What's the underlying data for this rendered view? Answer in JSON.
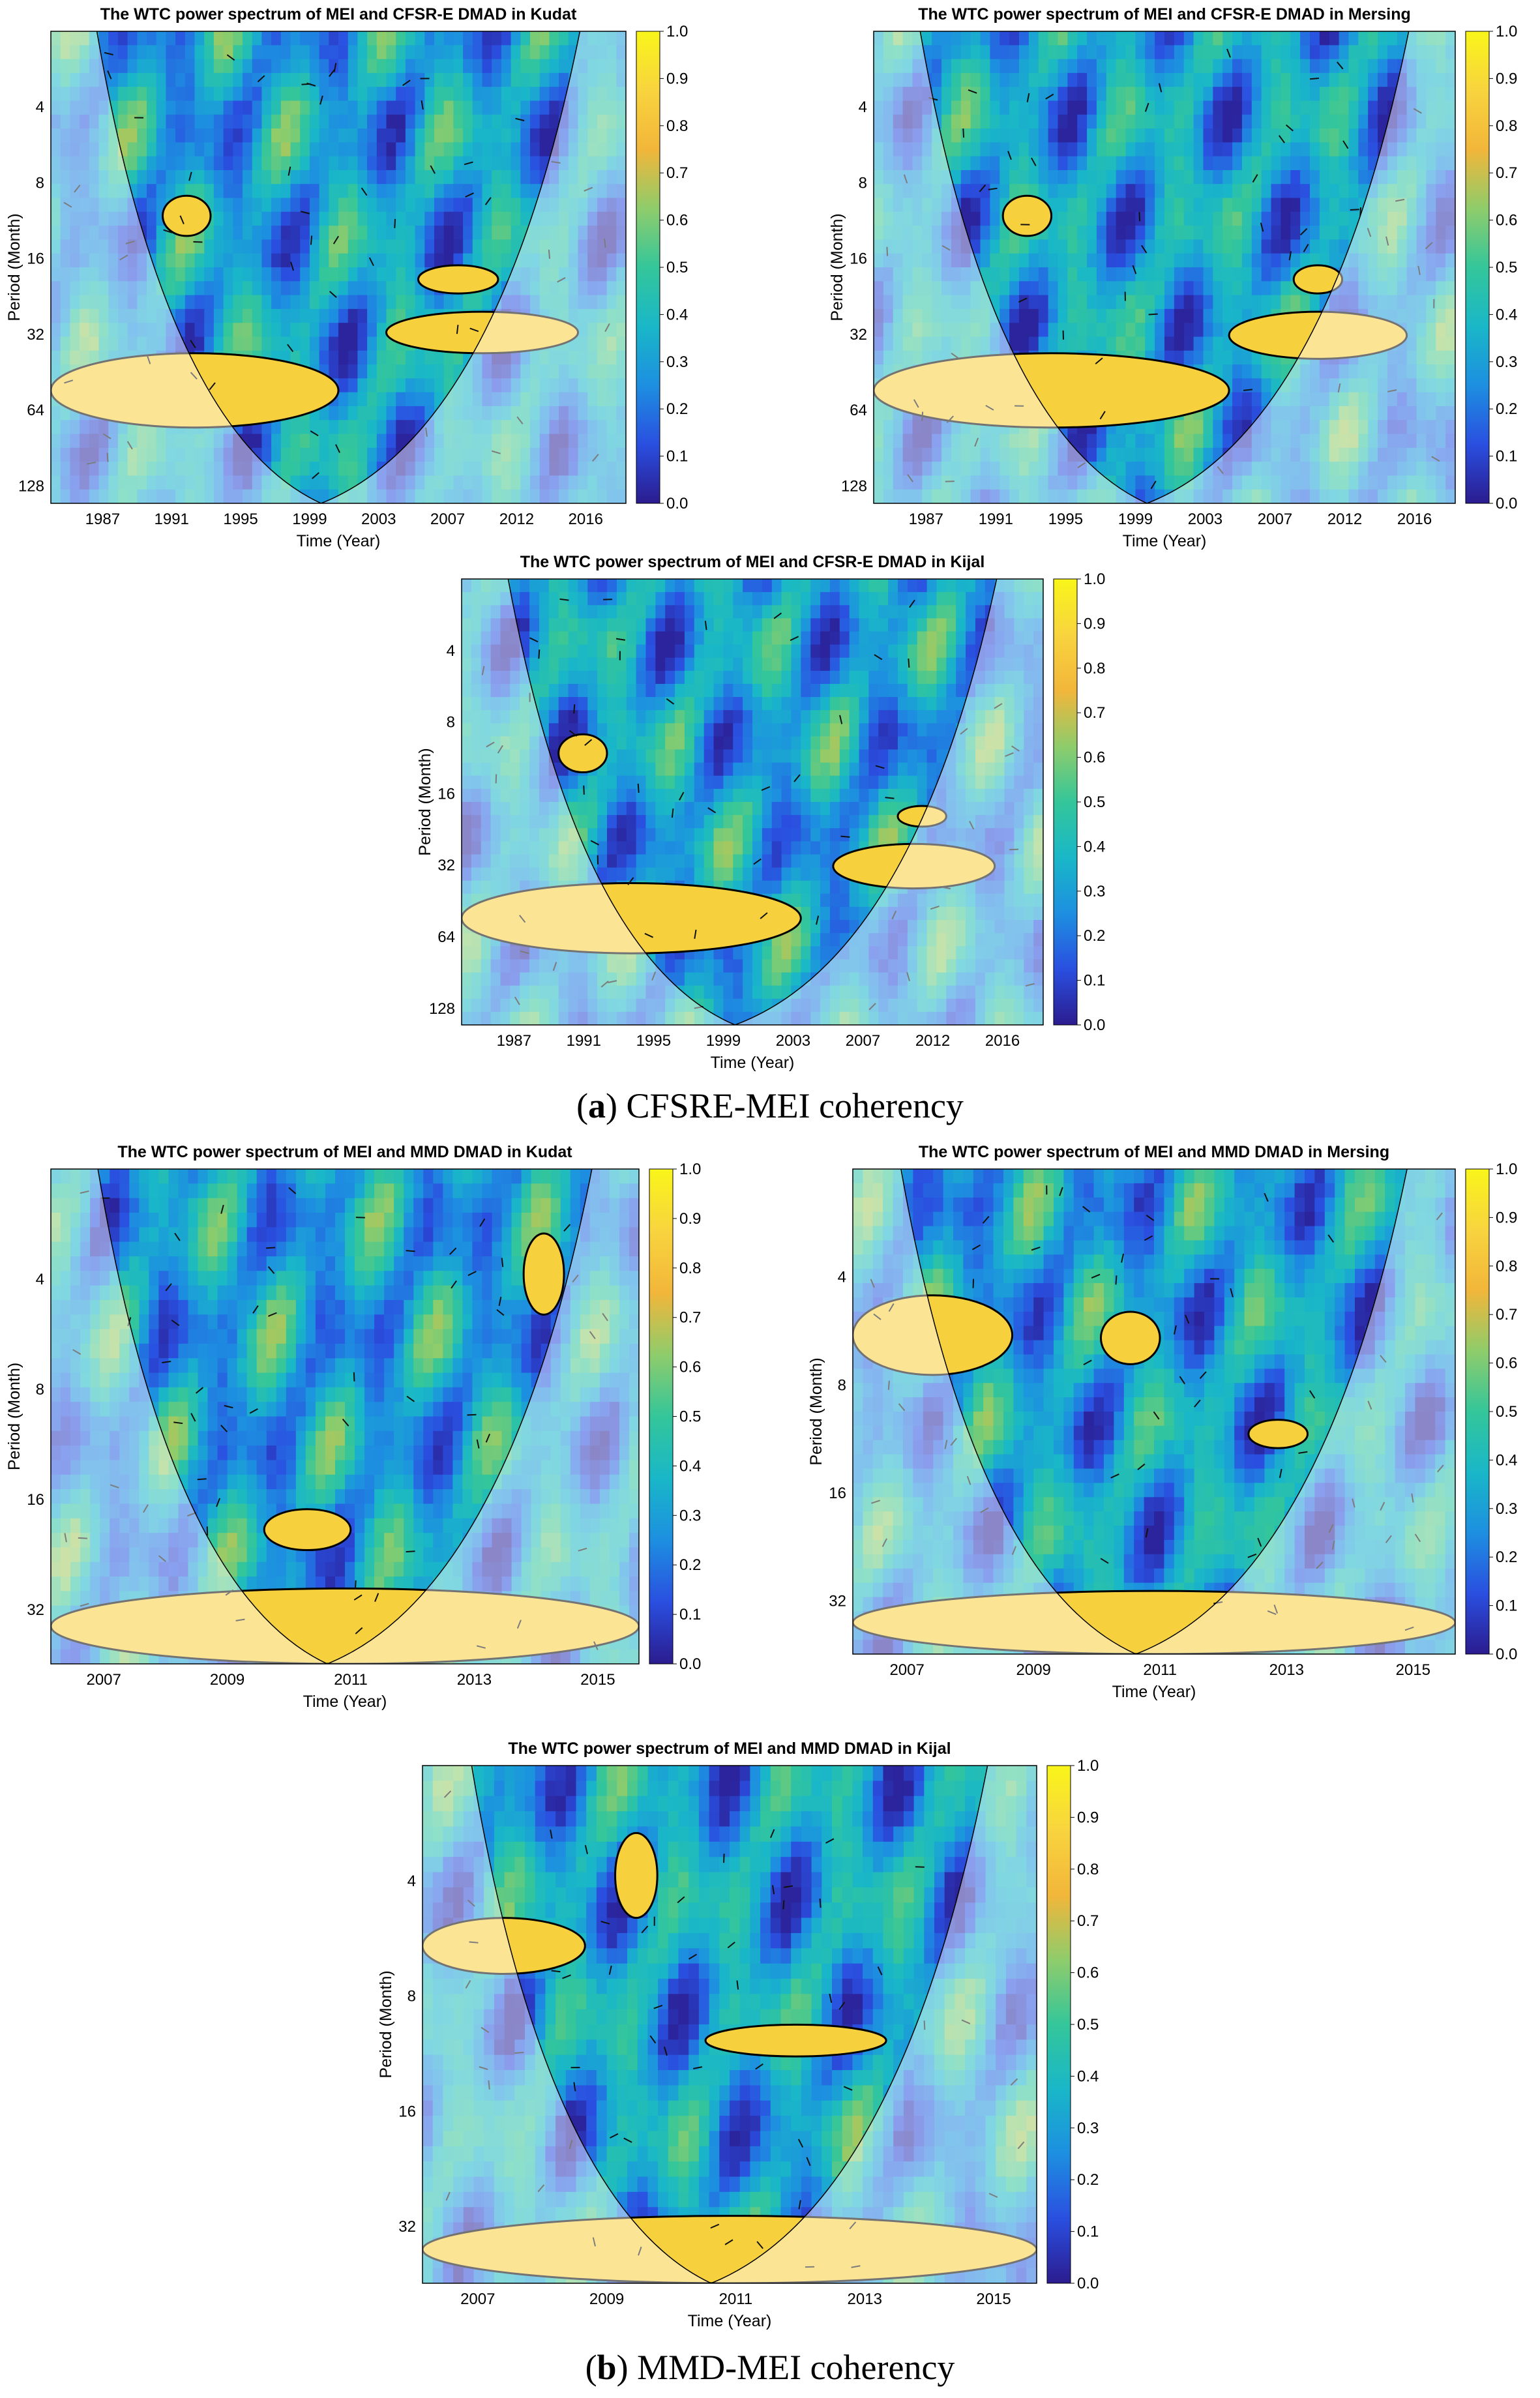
{
  "figure": {
    "caption_a_letter": "a",
    "caption_a_text": "CFSRE-MEI coherency",
    "caption_b_letter": "b",
    "caption_b_text": "MMD-MEI coherency"
  },
  "colors": {
    "colormap": [
      "#2b1c8f",
      "#2a4fe0",
      "#1d8fe0",
      "#19b7c8",
      "#34c69a",
      "#8fcc6b",
      "#f2b63a",
      "#f8d43e",
      "#f9f51a"
    ],
    "coi_shade": "#ffffff",
    "contour": "#000000",
    "arrow": "#111111"
  },
  "chart_data": [
    {
      "type": "heatmap",
      "title": "The WTC power spectrum of MEI and CFSR-E DMAD in Kudat",
      "xlabel": "Time (Year)",
      "ylabel": "Period (Month)",
      "x_ticks": [
        "1987",
        "1991",
        "1995",
        "1999",
        "2003",
        "2007",
        "2012",
        "2016"
      ],
      "y_ticks": [
        "4",
        "8",
        "16",
        "32",
        "64",
        "128"
      ],
      "colorbar_ticks": [
        "1.0",
        "0.9",
        "0.8",
        "0.7",
        "0.6",
        "0.5",
        "0.4",
        "0.3",
        "0.2",
        "0.1",
        "0.0"
      ],
      "value_range": [
        0,
        1
      ],
      "y_scale": "log2",
      "y_range_months": [
        2,
        150
      ],
      "x_range_years": [
        1983,
        2019
      ],
      "high_coherence_regions": [
        {
          "x": [
            1983,
            2001
          ],
          "period": [
            38,
            75
          ]
        },
        {
          "x": [
            2004,
            2016
          ],
          "period": [
            26,
            38
          ]
        },
        {
          "x": [
            1990,
            1993
          ],
          "period": [
            9,
            13
          ]
        },
        {
          "x": [
            2006,
            2011
          ],
          "period": [
            17,
            22
          ]
        }
      ]
    },
    {
      "type": "heatmap",
      "title": "The WTC power spectrum of MEI and CFSR-E DMAD in Mersing",
      "xlabel": "Time (Year)",
      "ylabel": "Period (Month)",
      "x_ticks": [
        "1987",
        "1991",
        "1995",
        "1999",
        "2003",
        "2007",
        "2012",
        "2016"
      ],
      "y_ticks": [
        "4",
        "8",
        "16",
        "32",
        "64",
        "128"
      ],
      "colorbar_ticks": [
        "1.0",
        "0.9",
        "0.8",
        "0.7",
        "0.6",
        "0.5",
        "0.4",
        "0.3",
        "0.2",
        "0.1",
        "0.0"
      ],
      "value_range": [
        0,
        1
      ],
      "y_scale": "log2",
      "y_range_months": [
        2,
        150
      ],
      "x_range_years": [
        1983,
        2019
      ],
      "high_coherence_regions": [
        {
          "x": [
            1983,
            2005
          ],
          "period": [
            38,
            75
          ]
        },
        {
          "x": [
            2005,
            2016
          ],
          "period": [
            26,
            40
          ]
        },
        {
          "x": [
            1991,
            1994
          ],
          "period": [
            9,
            13
          ]
        },
        {
          "x": [
            2009,
            2012
          ],
          "period": [
            17,
            22
          ]
        }
      ]
    },
    {
      "type": "heatmap",
      "title": "The WTC power spectrum of MEI and CFSR-E DMAD in Kijal",
      "xlabel": "Time (Year)",
      "ylabel": "Period (Month)",
      "x_ticks": [
        "1987",
        "1991",
        "1995",
        "1999",
        "2003",
        "2007",
        "2012",
        "2016"
      ],
      "y_ticks": [
        "4",
        "8",
        "16",
        "32",
        "64",
        "128"
      ],
      "colorbar_ticks": [
        "1.0",
        "0.9",
        "0.8",
        "0.7",
        "0.6",
        "0.5",
        "0.4",
        "0.3",
        "0.2",
        "0.1",
        "0.0"
      ],
      "value_range": [
        0,
        1
      ],
      "y_scale": "log2",
      "y_range_months": [
        2,
        150
      ],
      "x_range_years": [
        1983,
        2019
      ],
      "high_coherence_regions": [
        {
          "x": [
            1983,
            2004
          ],
          "period": [
            38,
            75
          ]
        },
        {
          "x": [
            2006,
            2016
          ],
          "period": [
            26,
            40
          ]
        },
        {
          "x": [
            1989,
            1992
          ],
          "period": [
            9,
            13
          ]
        },
        {
          "x": [
            2010,
            2013
          ],
          "period": [
            18,
            22
          ]
        }
      ]
    },
    {
      "type": "heatmap",
      "title": "The WTC power spectrum of MEI and MMD DMAD in Kudat",
      "xlabel": "Time (Year)",
      "ylabel": "Period (Month)",
      "x_ticks": [
        "2007",
        "2009",
        "2011",
        "2013",
        "2015"
      ],
      "y_ticks": [
        "4",
        "8",
        "16",
        "32"
      ],
      "colorbar_ticks": [
        "1.0",
        "0.9",
        "0.8",
        "0.7",
        "0.6",
        "0.5",
        "0.4",
        "0.3",
        "0.2",
        "0.1",
        "0.0"
      ],
      "value_range": [
        0,
        1
      ],
      "y_scale": "log2",
      "y_range_months": [
        2,
        45
      ],
      "x_range_years": [
        2006.3,
        2016.5
      ],
      "high_coherence_regions": [
        {
          "x": [
            2006.3,
            2016.5
          ],
          "period": [
            28,
            45
          ]
        },
        {
          "x": [
            2010,
            2011.5
          ],
          "period": [
            17,
            22
          ]
        },
        {
          "x": [
            2014.5,
            2015.2
          ],
          "period": [
            3,
            5
          ]
        }
      ]
    },
    {
      "type": "heatmap",
      "title": "The WTC power spectrum of MEI and MMD DMAD in Mersing",
      "xlabel": "Time (Year)",
      "ylabel": "Period (Month)",
      "x_ticks": [
        "2007",
        "2009",
        "2011",
        "2013",
        "2015"
      ],
      "y_ticks": [
        "4",
        "8",
        "16",
        "32"
      ],
      "colorbar_ticks": [
        "1.0",
        "0.9",
        "0.8",
        "0.7",
        "0.6",
        "0.5",
        "0.4",
        "0.3",
        "0.2",
        "0.1",
        "0.0"
      ],
      "value_range": [
        0,
        1
      ],
      "y_scale": "log2",
      "y_range_months": [
        2,
        45
      ],
      "x_range_years": [
        2006.3,
        2016.5
      ],
      "high_coherence_regions": [
        {
          "x": [
            2006.3,
            2009
          ],
          "period": [
            4.5,
            7.5
          ]
        },
        {
          "x": [
            2006.3,
            2016.5
          ],
          "period": [
            30,
            45
          ]
        },
        {
          "x": [
            2010.5,
            2011.5
          ],
          "period": [
            5,
            7
          ]
        },
        {
          "x": [
            2013,
            2014
          ],
          "period": [
            10,
            12
          ]
        }
      ]
    },
    {
      "type": "heatmap",
      "title": "The WTC power spectrum of MEI and MMD DMAD in Kijal",
      "xlabel": "Time (Year)",
      "ylabel": "Period (Month)",
      "x_ticks": [
        "2007",
        "2009",
        "2011",
        "2013",
        "2015"
      ],
      "y_ticks": [
        "4",
        "8",
        "16",
        "32"
      ],
      "colorbar_ticks": [
        "1.0",
        "0.9",
        "0.8",
        "0.7",
        "0.6",
        "0.5",
        "0.4",
        "0.3",
        "0.2",
        "0.1",
        "0.0"
      ],
      "value_range": [
        0,
        1
      ],
      "y_scale": "log2",
      "y_range_months": [
        2,
        45
      ],
      "x_range_years": [
        2006.3,
        2016.5
      ],
      "high_coherence_regions": [
        {
          "x": [
            2006.3,
            2009
          ],
          "period": [
            5,
            7
          ]
        },
        {
          "x": [
            2006.3,
            2016.5
          ],
          "period": [
            30,
            45
          ]
        },
        {
          "x": [
            2011,
            2014
          ],
          "period": [
            9.5,
            11.5
          ]
        },
        {
          "x": [
            2009.5,
            2010.2
          ],
          "period": [
            3,
            5
          ]
        }
      ]
    }
  ]
}
